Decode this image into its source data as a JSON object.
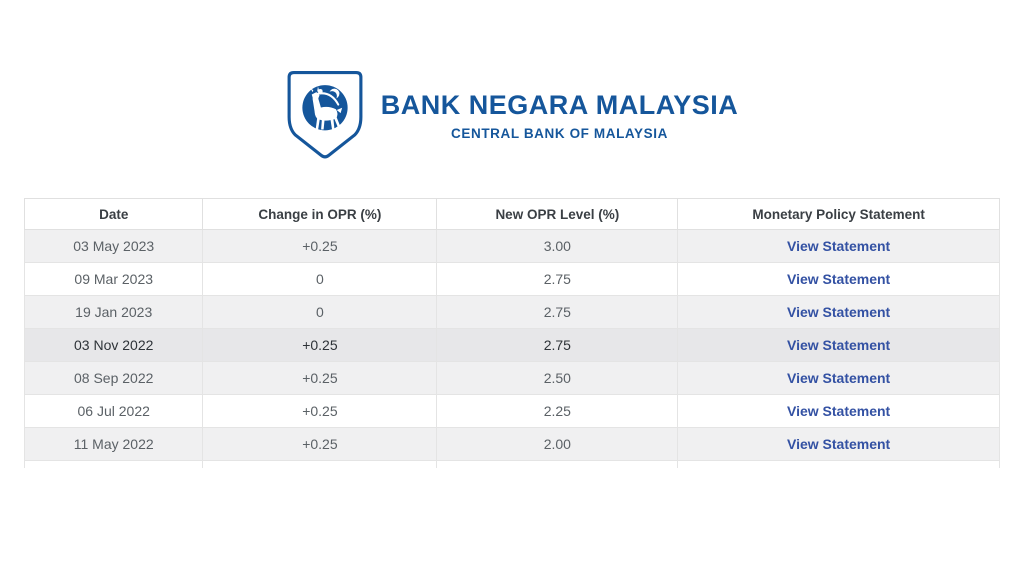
{
  "colors": {
    "brand_blue": "#15569B",
    "link_blue": "#3351A3",
    "header_text": "#3a3f44",
    "cell_text": "#5b6166",
    "stripe_gray": "#f0f0f1",
    "highlight_gray": "#e7e7e9",
    "border_gray": "#e0e0e0"
  },
  "logo": {
    "title": "BANK NEGARA MALAYSIA",
    "subtitle": "CENTRAL BANK OF MALAYSIA",
    "emblem": "kijang-deer-crescent-shield-icon"
  },
  "table": {
    "headers": [
      "Date",
      "Change in OPR (%)",
      "New OPR Level (%)",
      "Monetary Policy Statement"
    ],
    "rows": [
      {
        "date": "03 May 2023",
        "change": "+0.25",
        "new_level": "3.00",
        "statement": "View Statement",
        "highlighted": false
      },
      {
        "date": "09 Mar 2023",
        "change": "0",
        "new_level": "2.75",
        "statement": "View Statement",
        "highlighted": false
      },
      {
        "date": "19 Jan 2023",
        "change": "0",
        "new_level": "2.75",
        "statement": "View Statement",
        "highlighted": false
      },
      {
        "date": "03 Nov 2022",
        "change": "+0.25",
        "new_level": "2.75",
        "statement": "View Statement",
        "highlighted": true
      },
      {
        "date": "08 Sep 2022",
        "change": "+0.25",
        "new_level": "2.50",
        "statement": "View Statement",
        "highlighted": false
      },
      {
        "date": "06 Jul 2022",
        "change": "+0.25",
        "new_level": "2.25",
        "statement": "View Statement",
        "highlighted": false
      },
      {
        "date": "11 May 2022",
        "change": "+0.25",
        "new_level": "2.00",
        "statement": "View Statement",
        "highlighted": false
      }
    ],
    "partial_row_visible": true
  }
}
